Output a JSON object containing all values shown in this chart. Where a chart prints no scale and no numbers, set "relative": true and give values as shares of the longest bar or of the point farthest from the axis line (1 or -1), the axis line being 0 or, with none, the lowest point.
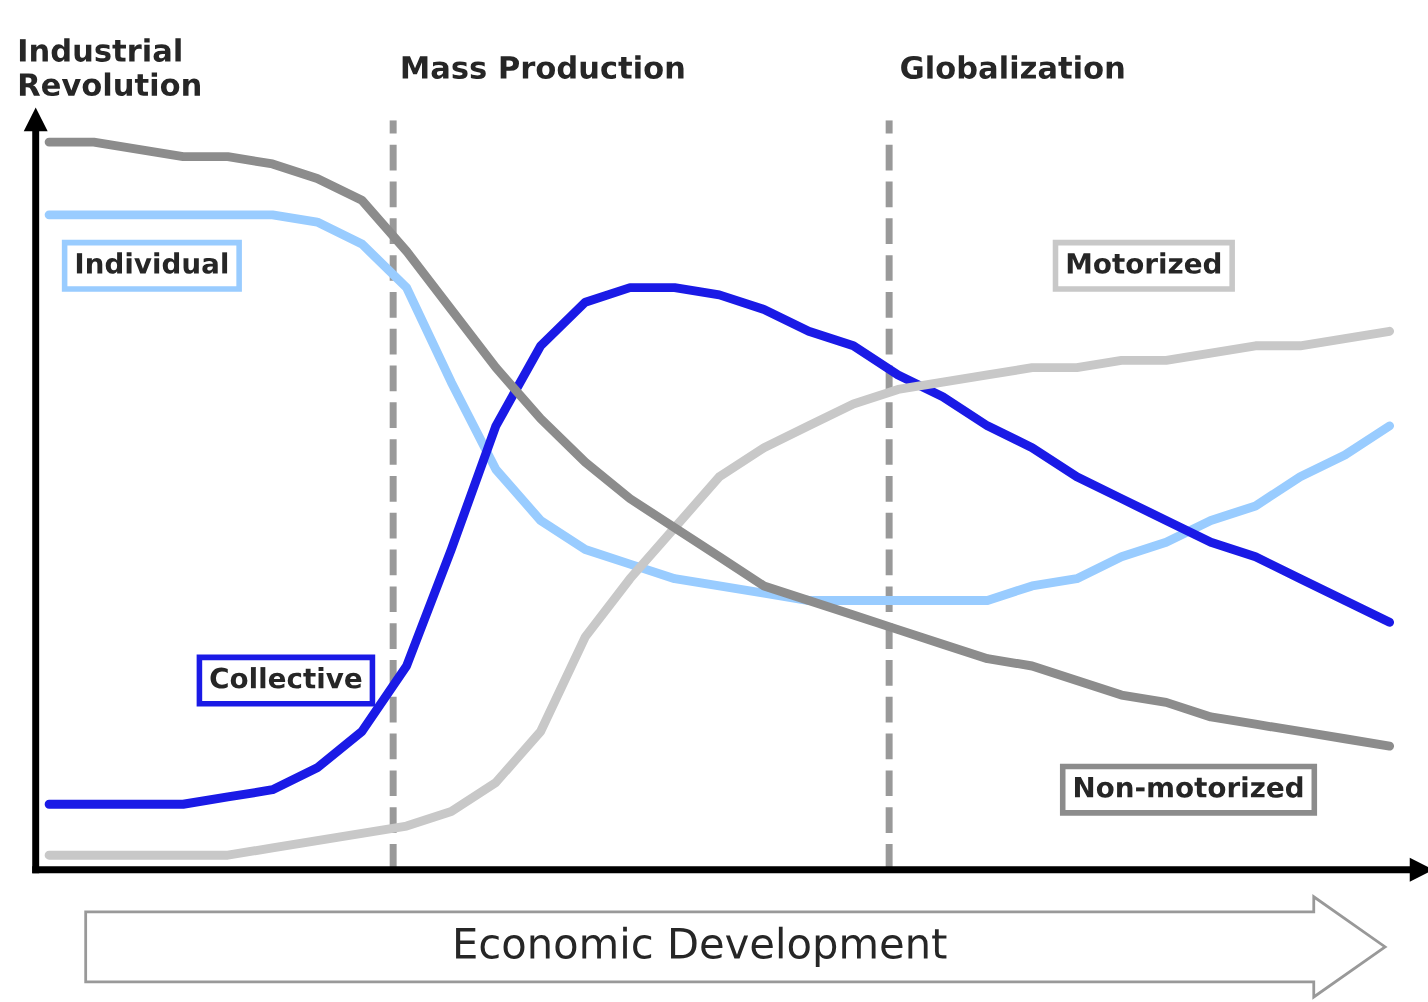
{
  "chart_data": {
    "type": "line",
    "relative": true,
    "xlabel": "Economic Development",
    "annotations": [
      "Industrial\nRevolution",
      "Mass Production",
      "Globalization"
    ],
    "categories": [
      null,
      null,
      null,
      null,
      null,
      null,
      null,
      null,
      null,
      null,
      null,
      null,
      null,
      null,
      null,
      null,
      null,
      null,
      null,
      null,
      null,
      null,
      null,
      null,
      null,
      null,
      null,
      null,
      null,
      null,
      null
    ],
    "series": [
      {
        "name": "Individual",
        "color": "#99ccff",
        "values": [
          0.9,
          0.9,
          0.9,
          0.9,
          0.9,
          0.9,
          0.89,
          0.86,
          0.8,
          0.67,
          0.55,
          0.48,
          0.44,
          0.42,
          0.4,
          0.39,
          0.38,
          0.37,
          0.37,
          0.37,
          0.37,
          0.37,
          0.39,
          0.4,
          0.43,
          0.45,
          0.48,
          0.5,
          0.54,
          0.57,
          0.61
        ]
      },
      {
        "name": "Collective",
        "color": "#1a1ae6",
        "values": [
          0.09,
          0.09,
          0.09,
          0.09,
          0.1,
          0.11,
          0.14,
          0.19,
          0.28,
          0.44,
          0.61,
          0.72,
          0.78,
          0.8,
          0.8,
          0.79,
          0.77,
          0.74,
          0.72,
          0.68,
          0.65,
          0.61,
          0.58,
          0.54,
          0.51,
          0.48,
          0.45,
          0.43,
          0.4,
          0.37,
          0.34
        ]
      },
      {
        "name": "Motorized",
        "color": "#c8c8c8",
        "values": [
          0.02,
          0.02,
          0.02,
          0.02,
          0.02,
          0.03,
          0.04,
          0.05,
          0.06,
          0.08,
          0.12,
          0.19,
          0.32,
          0.4,
          0.47,
          0.54,
          0.58,
          0.61,
          0.64,
          0.66,
          0.67,
          0.68,
          0.69,
          0.69,
          0.7,
          0.7,
          0.71,
          0.72,
          0.72,
          0.73,
          0.74
        ]
      },
      {
        "name": "Non-motorized",
        "color": "#8c8c8c",
        "values": [
          1.0,
          1.0,
          0.99,
          0.98,
          0.98,
          0.97,
          0.95,
          0.92,
          0.85,
          0.77,
          0.69,
          0.62,
          0.56,
          0.51,
          0.47,
          0.43,
          0.39,
          0.37,
          0.35,
          0.33,
          0.31,
          0.29,
          0.28,
          0.26,
          0.24,
          0.23,
          0.21,
          0.2,
          0.19,
          0.18,
          0.17
        ]
      }
    ],
    "line_style": "solid",
    "marker": "none",
    "legend": false
  }
}
